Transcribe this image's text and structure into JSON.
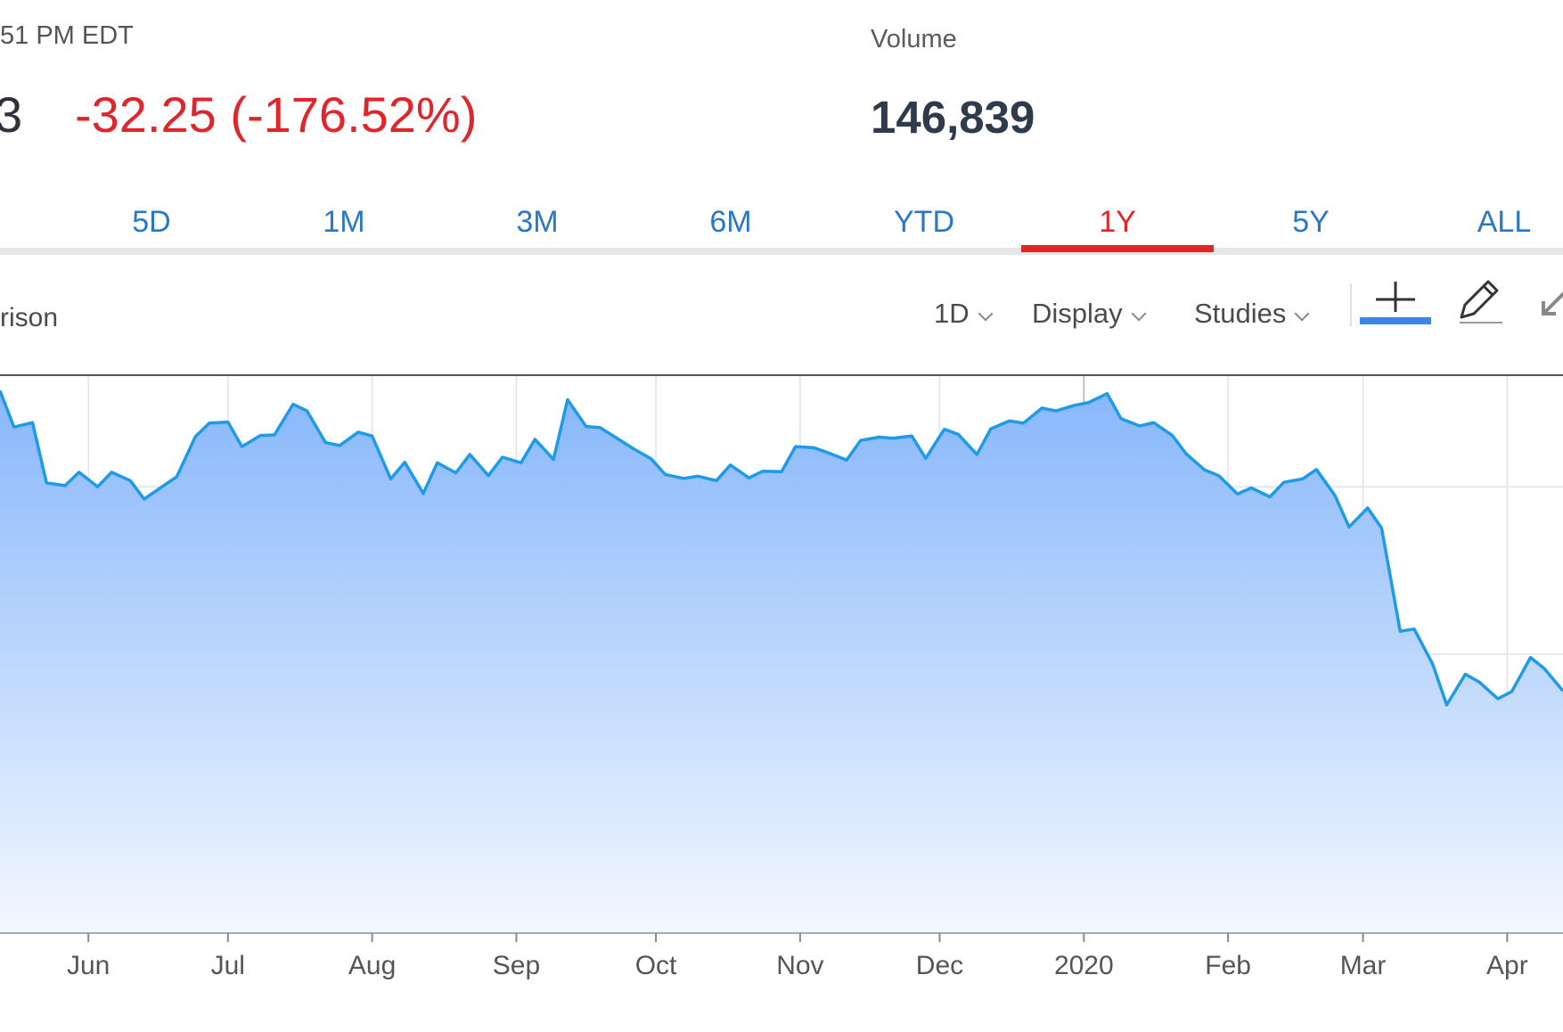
{
  "header": {
    "time_text": "51 PM EDT",
    "price_fragment": "3",
    "change_text": "-32.25 (-176.52%)",
    "volume_label": "Volume",
    "volume_value": "146,839"
  },
  "range_tabs": [
    {
      "label": "5D",
      "active": false
    },
    {
      "label": "1M",
      "active": false
    },
    {
      "label": "3M",
      "active": false
    },
    {
      "label": "6M",
      "active": false
    },
    {
      "label": "YTD",
      "active": false
    },
    {
      "label": "1Y",
      "active": true
    },
    {
      "label": "5Y",
      "active": false
    },
    {
      "label": "ALL",
      "active": false
    }
  ],
  "toolbar": {
    "compare_fragment": "rison",
    "interval_label": "1D",
    "display_label": "Display",
    "studies_label": "Studies",
    "tools": [
      "crosshair-icon",
      "pencil-icon",
      "arrow-icon"
    ]
  },
  "colors": {
    "accent_red": "#e0252b",
    "tab_blue": "#2878c6",
    "line_blue": "#1e9be8",
    "fill_top": "#88b7fb",
    "fill_bottom": "#f3f8ff"
  },
  "chart_data": {
    "type": "area",
    "title": "",
    "xlabel": "",
    "ylabel": "",
    "x_ticks": [
      "Jun",
      "Jul",
      "Aug",
      "Sep",
      "Oct",
      "Nov",
      "Dec",
      "2020",
      "Feb",
      "Mar",
      "Apr"
    ],
    "x_tick_dates": [
      "2019-06-01",
      "2019-07-01",
      "2019-08-01",
      "2019-09-01",
      "2019-10-01",
      "2019-11-01",
      "2019-12-01",
      "2020-01-01",
      "2020-02-01",
      "2020-03-01",
      "2020-04-01"
    ],
    "x_range": [
      "2019-05-13",
      "2020-04-13"
    ],
    "y_range": [
      0,
      1
    ],
    "grid": true,
    "series": [
      {
        "values": [
          [
            "2019-05-13",
            0.972
          ],
          [
            "2019-05-16",
            0.907
          ],
          [
            "2019-05-20",
            0.915
          ],
          [
            "2019-05-23",
            0.807
          ],
          [
            "2019-05-27",
            0.802
          ],
          [
            "2019-05-30",
            0.826
          ],
          [
            "2019-06-03",
            0.8
          ],
          [
            "2019-06-06",
            0.826
          ],
          [
            "2019-06-10",
            0.811
          ],
          [
            "2019-06-13",
            0.778
          ],
          [
            "2019-06-17",
            0.801
          ],
          [
            "2019-06-20",
            0.818
          ],
          [
            "2019-06-24",
            0.89
          ],
          [
            "2019-06-27",
            0.914
          ],
          [
            "2019-07-01",
            0.916
          ],
          [
            "2019-07-04",
            0.872
          ],
          [
            "2019-07-08",
            0.892
          ],
          [
            "2019-07-11",
            0.893
          ],
          [
            "2019-07-15",
            0.948
          ],
          [
            "2019-07-18",
            0.936
          ],
          [
            "2019-07-22",
            0.879
          ],
          [
            "2019-07-25",
            0.874
          ],
          [
            "2019-07-29",
            0.898
          ],
          [
            "2019-08-01",
            0.891
          ],
          [
            "2019-08-05",
            0.814
          ],
          [
            "2019-08-08",
            0.844
          ],
          [
            "2019-08-12",
            0.788
          ],
          [
            "2019-08-15",
            0.843
          ],
          [
            "2019-08-19",
            0.825
          ],
          [
            "2019-08-22",
            0.858
          ],
          [
            "2019-08-26",
            0.82
          ],
          [
            "2019-08-29",
            0.853
          ],
          [
            "2019-09-02",
            0.843
          ],
          [
            "2019-09-05",
            0.885
          ],
          [
            "2019-09-09",
            0.849
          ],
          [
            "2019-09-12",
            0.956
          ],
          [
            "2019-09-16",
            0.908
          ],
          [
            "2019-09-19",
            0.906
          ],
          [
            "2019-09-23",
            0.885
          ],
          [
            "2019-09-26",
            0.869
          ],
          [
            "2019-09-30",
            0.85
          ],
          [
            "2019-10-03",
            0.822
          ],
          [
            "2019-10-07",
            0.815
          ],
          [
            "2019-10-10",
            0.819
          ],
          [
            "2019-10-14",
            0.811
          ],
          [
            "2019-10-17",
            0.839
          ],
          [
            "2019-10-21",
            0.816
          ],
          [
            "2019-10-24",
            0.828
          ],
          [
            "2019-10-28",
            0.827
          ],
          [
            "2019-10-31",
            0.872
          ],
          [
            "2019-11-04",
            0.87
          ],
          [
            "2019-11-07",
            0.861
          ],
          [
            "2019-11-11",
            0.848
          ],
          [
            "2019-11-14",
            0.883
          ],
          [
            "2019-11-18",
            0.889
          ],
          [
            "2019-11-21",
            0.887
          ],
          [
            "2019-11-25",
            0.891
          ],
          [
            "2019-11-28",
            0.851
          ],
          [
            "2019-12-02",
            0.903
          ],
          [
            "2019-12-05",
            0.894
          ],
          [
            "2019-12-09",
            0.858
          ],
          [
            "2019-12-12",
            0.904
          ],
          [
            "2019-12-16",
            0.918
          ],
          [
            "2019-12-19",
            0.914
          ],
          [
            "2019-12-23",
            0.941
          ],
          [
            "2019-12-26",
            0.936
          ],
          [
            "2019-12-30",
            0.946
          ],
          [
            "2020-01-02",
            0.951
          ],
          [
            "2020-01-06",
            0.967
          ],
          [
            "2020-01-09",
            0.922
          ],
          [
            "2020-01-13",
            0.909
          ],
          [
            "2020-01-16",
            0.915
          ],
          [
            "2020-01-20",
            0.892
          ],
          [
            "2020-01-23",
            0.859
          ],
          [
            "2020-01-27",
            0.83
          ],
          [
            "2020-01-30",
            0.82
          ],
          [
            "2020-02-03",
            0.787
          ],
          [
            "2020-02-06",
            0.798
          ],
          [
            "2020-02-10",
            0.782
          ],
          [
            "2020-02-13",
            0.808
          ],
          [
            "2020-02-17",
            0.814
          ],
          [
            "2020-02-20",
            0.831
          ],
          [
            "2020-02-24",
            0.784
          ],
          [
            "2020-02-27",
            0.728
          ],
          [
            "2020-03-02",
            0.762
          ],
          [
            "2020-03-05",
            0.726
          ],
          [
            "2020-03-09",
            0.541
          ],
          [
            "2020-03-12",
            0.545
          ],
          [
            "2020-03-16",
            0.482
          ],
          [
            "2020-03-19",
            0.409
          ],
          [
            "2020-03-23",
            0.464
          ],
          [
            "2020-03-26",
            0.45
          ],
          [
            "2020-03-30",
            0.42
          ],
          [
            "2020-04-02",
            0.433
          ],
          [
            "2020-04-06",
            0.494
          ],
          [
            "2020-04-09",
            0.474
          ],
          [
            "2020-04-13",
            0.434
          ]
        ]
      }
    ]
  }
}
